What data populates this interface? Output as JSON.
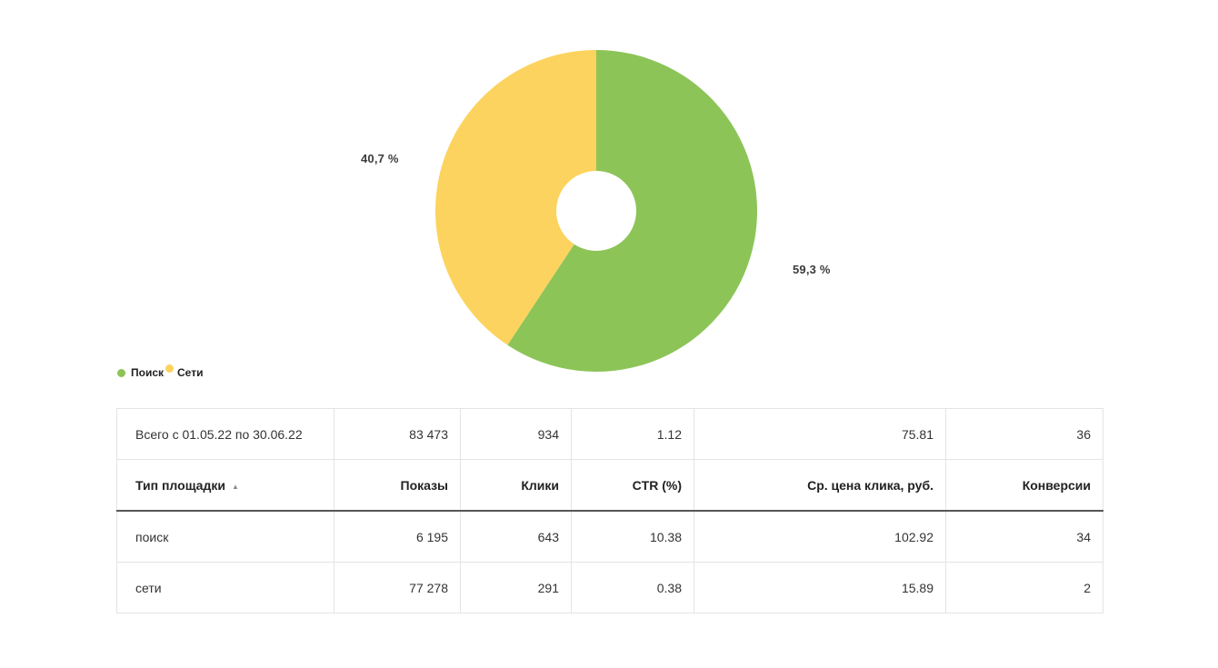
{
  "chart_data": {
    "type": "pie",
    "donut": true,
    "title": "",
    "legend_position": "bottom-left",
    "series": [
      {
        "name": "Поиск",
        "value": 59.3,
        "pct_label": "59,3 %",
        "color": "#8cc458"
      },
      {
        "name": "Сети",
        "value": 40.7,
        "pct_label": "40,7 %",
        "color": "#fcd35e"
      }
    ]
  },
  "table": {
    "totals_row": {
      "label": "Всего с 01.05.22 по 30.06.22",
      "values": [
        "83 473",
        "934",
        "1.12",
        "75.81",
        "36"
      ]
    },
    "columns": [
      "Тип площадки",
      "Показы",
      "Клики",
      "CTR (%)",
      "Ср. цена клика, руб.",
      "Конверсии"
    ],
    "sort": {
      "column": "Тип площадки",
      "direction": "asc",
      "icon": "▲"
    },
    "rows": [
      [
        "поиск",
        "6 195",
        "643",
        "10.38",
        "102.92",
        "34"
      ],
      [
        "сети",
        "77 278",
        "291",
        "0.38",
        "15.89",
        "2"
      ]
    ]
  }
}
